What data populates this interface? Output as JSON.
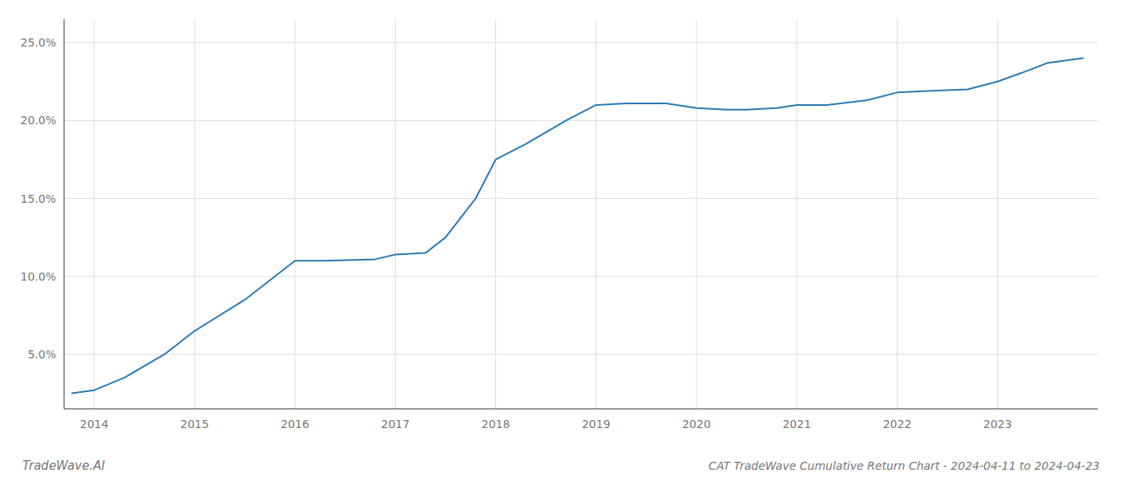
{
  "chart_data": {
    "type": "line",
    "title": "CAT TradeWave Cumulative Return Chart - 2024-04-11 to 2024-04-23",
    "annotations": [
      "TradeWave.AI"
    ],
    "x": [
      2013.78,
      2014.0,
      2014.3,
      2014.7,
      2015.0,
      2015.5,
      2016.0,
      2016.3,
      2016.8,
      2017.0,
      2017.3,
      2017.5,
      2017.8,
      2018.0,
      2018.3,
      2018.7,
      2019.0,
      2019.3,
      2019.7,
      2020.0,
      2020.3,
      2020.5,
      2020.8,
      2021.0,
      2021.3,
      2021.7,
      2022.0,
      2022.3,
      2022.7,
      2023.0,
      2023.3,
      2023.5,
      2023.85
    ],
    "values": [
      2.5,
      2.7,
      3.5,
      5.0,
      6.5,
      8.5,
      11.0,
      11.0,
      11.1,
      11.4,
      11.5,
      12.5,
      15.0,
      17.5,
      18.5,
      20.0,
      21.0,
      21.1,
      21.1,
      20.8,
      20.7,
      20.7,
      20.8,
      21.0,
      21.0,
      21.3,
      21.8,
      21.9,
      22.0,
      22.5,
      23.2,
      23.7,
      24.0
    ],
    "color": "#2878b5",
    "xlim": [
      2013.7,
      2024.0
    ],
    "ylim": [
      1.5,
      26.5
    ],
    "xticks": [
      2014,
      2015,
      2016,
      2017,
      2018,
      2019,
      2020,
      2021,
      2022,
      2023
    ],
    "yticks": [
      {
        "value": 5.0,
        "label": "5.0%"
      },
      {
        "value": 10.0,
        "label": "10.0%"
      },
      {
        "value": 15.0,
        "label": "15.0%"
      },
      {
        "value": 20.0,
        "label": "20.0%"
      },
      {
        "value": 25.0,
        "label": "25.0%"
      }
    ],
    "grid": true
  }
}
